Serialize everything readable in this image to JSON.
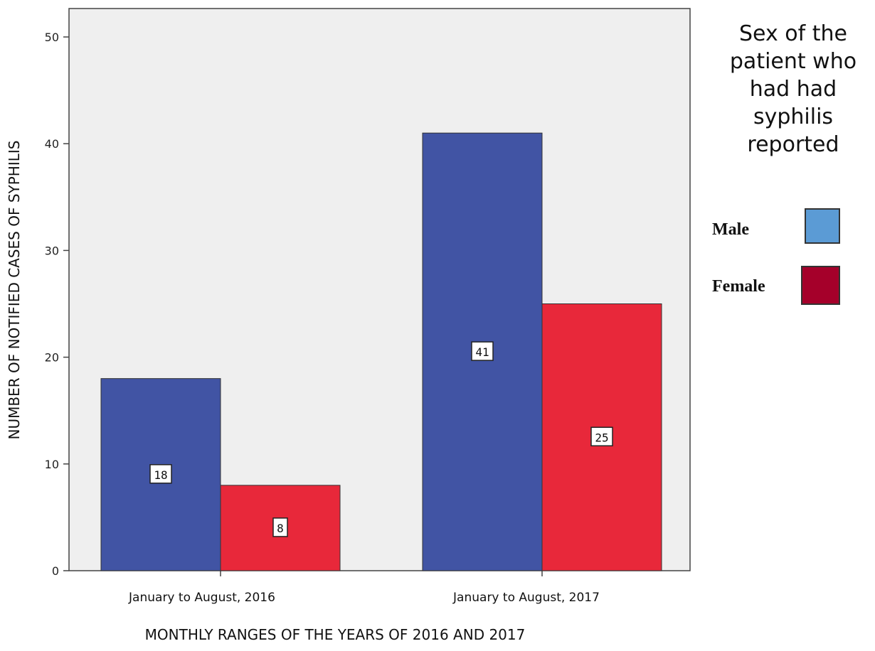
{
  "chart_data": {
    "type": "bar",
    "categories": [
      "January to August, 2016",
      "January to August, 2017"
    ],
    "series": [
      {
        "name": "Male",
        "values": [
          18,
          41
        ],
        "color": "#4154a4",
        "legend_color": "#5b9bd5"
      },
      {
        "name": "Female",
        "values": [
          8,
          25
        ],
        "color": "#e8283a",
        "legend_color": "#a5002a"
      }
    ],
    "title": "",
    "xlabel": "MONTHLY RANGES OF THE YEARS OF 2016 AND 2017",
    "ylabel": "NUMBER OF NOTIFIED CASES OF SYPHILIS",
    "ylim": [
      0,
      53
    ],
    "yticks": [
      0,
      10,
      20,
      30,
      40,
      50
    ],
    "grid": false,
    "plot_background": "#efefef",
    "legend": {
      "title": "Sex of the patient who had had syphilis reported",
      "title_lines": [
        "Sex of the",
        "patient who",
        "had had",
        "syphilis",
        "reported"
      ],
      "placement": "right"
    }
  }
}
